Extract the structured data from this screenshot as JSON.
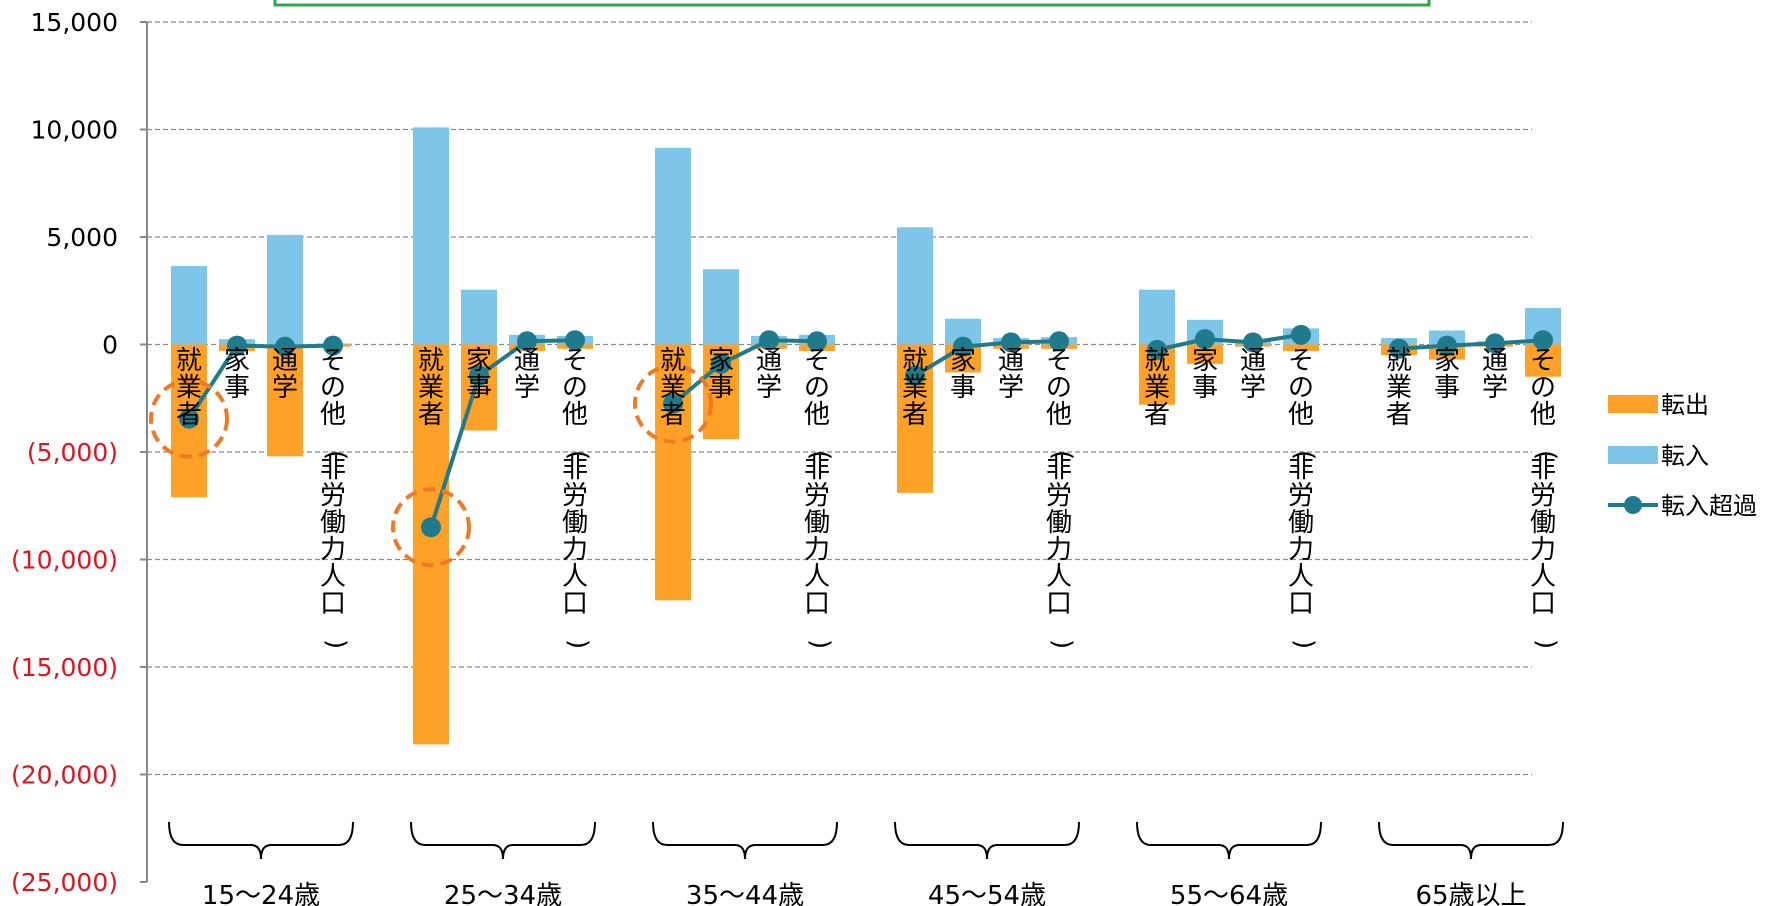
{
  "chart_data": {
    "type": "bar",
    "title": "",
    "xlabel": "",
    "ylabel": "",
    "ylim": [
      -25000,
      15000
    ],
    "yticks": [
      15000,
      10000,
      5000,
      0,
      -5000,
      -10000,
      -15000,
      -20000,
      -25000
    ],
    "ytick_labels": [
      "15,000",
      "10,000",
      "5,000",
      "0",
      "(5,000)",
      "(10,000)",
      "(15,000)",
      "(20,000)",
      "(25,000)"
    ],
    "grid": true,
    "legend_position": "right",
    "groups": [
      "15～24歳",
      "25～34歳",
      "35～44歳",
      "45～54歳",
      "55～64歳",
      "65歳以上"
    ],
    "subcategories": [
      "就業者",
      "家事",
      "通学",
      "その他(非労働力人口)"
    ],
    "category_labels": [
      "就業者",
      "家事",
      "通学",
      "その他(非労働力人口)",
      "就業者",
      "家事",
      "通学",
      "その他(非労働力人口)",
      "就業者",
      "家事",
      "通学",
      "その他(非労働力人口)",
      "就業者",
      "家事",
      "通学",
      "その他(非労働力人口)",
      "就業者",
      "家事",
      "通学",
      "その他(非労働力人口)",
      "就業者",
      "家事",
      "通学",
      "その他(非労働力人口)"
    ],
    "series": [
      {
        "name": "転出",
        "type": "bar",
        "color": "#FFA126",
        "values": [
          -7100,
          -300,
          -5200,
          -100,
          -18600,
          -4000,
          -300,
          -200,
          -11900,
          -4400,
          -200,
          -300,
          -6900,
          -1300,
          -200,
          -200,
          -2800,
          -900,
          -100,
          -300,
          -500,
          -700,
          -100,
          -1500
        ]
      },
      {
        "name": "転入",
        "type": "bar",
        "color": "#7DC6EA",
        "values": [
          3650,
          250,
          5100,
          50,
          10100,
          2550,
          450,
          400,
          9150,
          3500,
          400,
          450,
          5450,
          1200,
          300,
          350,
          2550,
          1150,
          200,
          750,
          300,
          650,
          150,
          1700
        ]
      },
      {
        "name": "転入超過",
        "type": "line",
        "color": "#1F7A8C",
        "values": [
          -3450,
          -50,
          -100,
          -50,
          -8500,
          -1450,
          150,
          200,
          -2750,
          -900,
          200,
          150,
          -1450,
          -100,
          100,
          150,
          -250,
          250,
          100,
          450,
          -200,
          -50,
          50,
          200
        ]
      }
    ],
    "highlight_circles": [
      0,
      4,
      8
    ],
    "highlight_circle_color": "#F07A22"
  }
}
